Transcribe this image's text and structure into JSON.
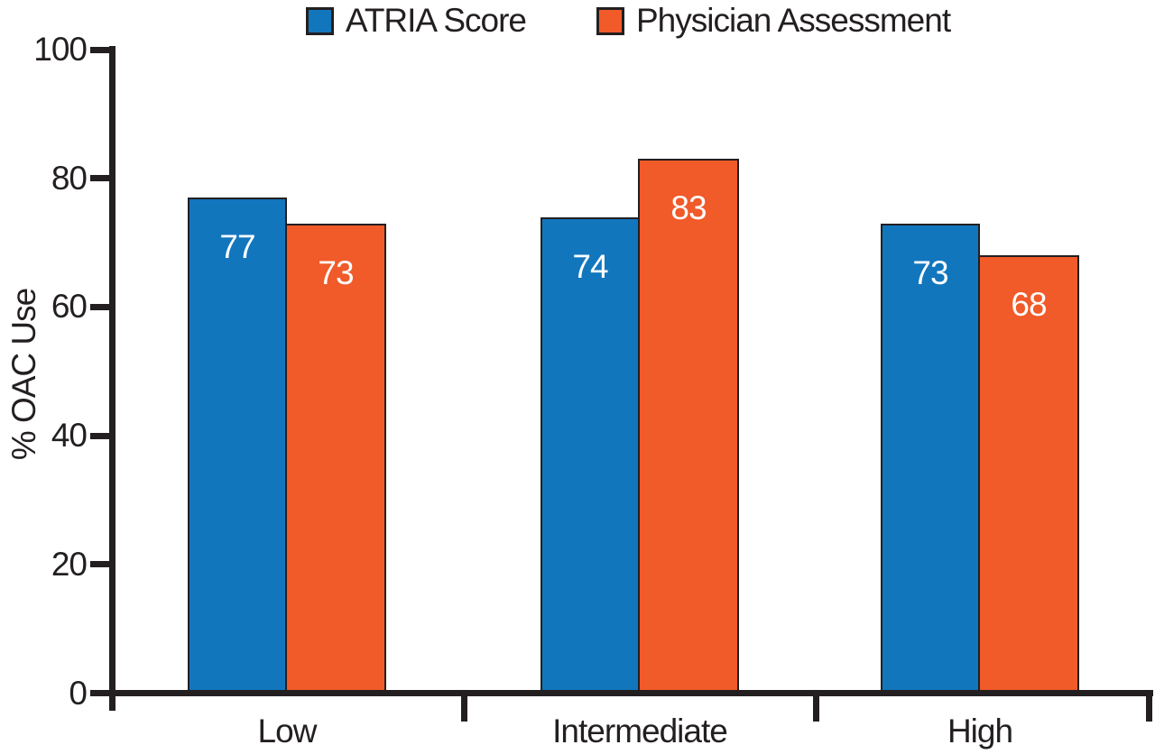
{
  "chart_data": {
    "type": "bar",
    "title": "",
    "xlabel": "",
    "ylabel": "% OAC Use",
    "categories": [
      "Low",
      "Intermediate",
      "High"
    ],
    "series": [
      {
        "name": "ATRIA Score",
        "color": "#1276BD",
        "values": [
          77,
          74,
          73
        ]
      },
      {
        "name": "Physician Assessment",
        "color": "#F15A29",
        "values": [
          73,
          83,
          68
        ]
      }
    ],
    "ylim": [
      0,
      100
    ],
    "yticks": [
      0,
      20,
      40,
      60,
      80,
      100
    ],
    "grid": false,
    "legend_position": "top",
    "bar_label_color": "#FFFFFF",
    "axis_color": "#231F20",
    "background_color": "#FFFFFF"
  }
}
